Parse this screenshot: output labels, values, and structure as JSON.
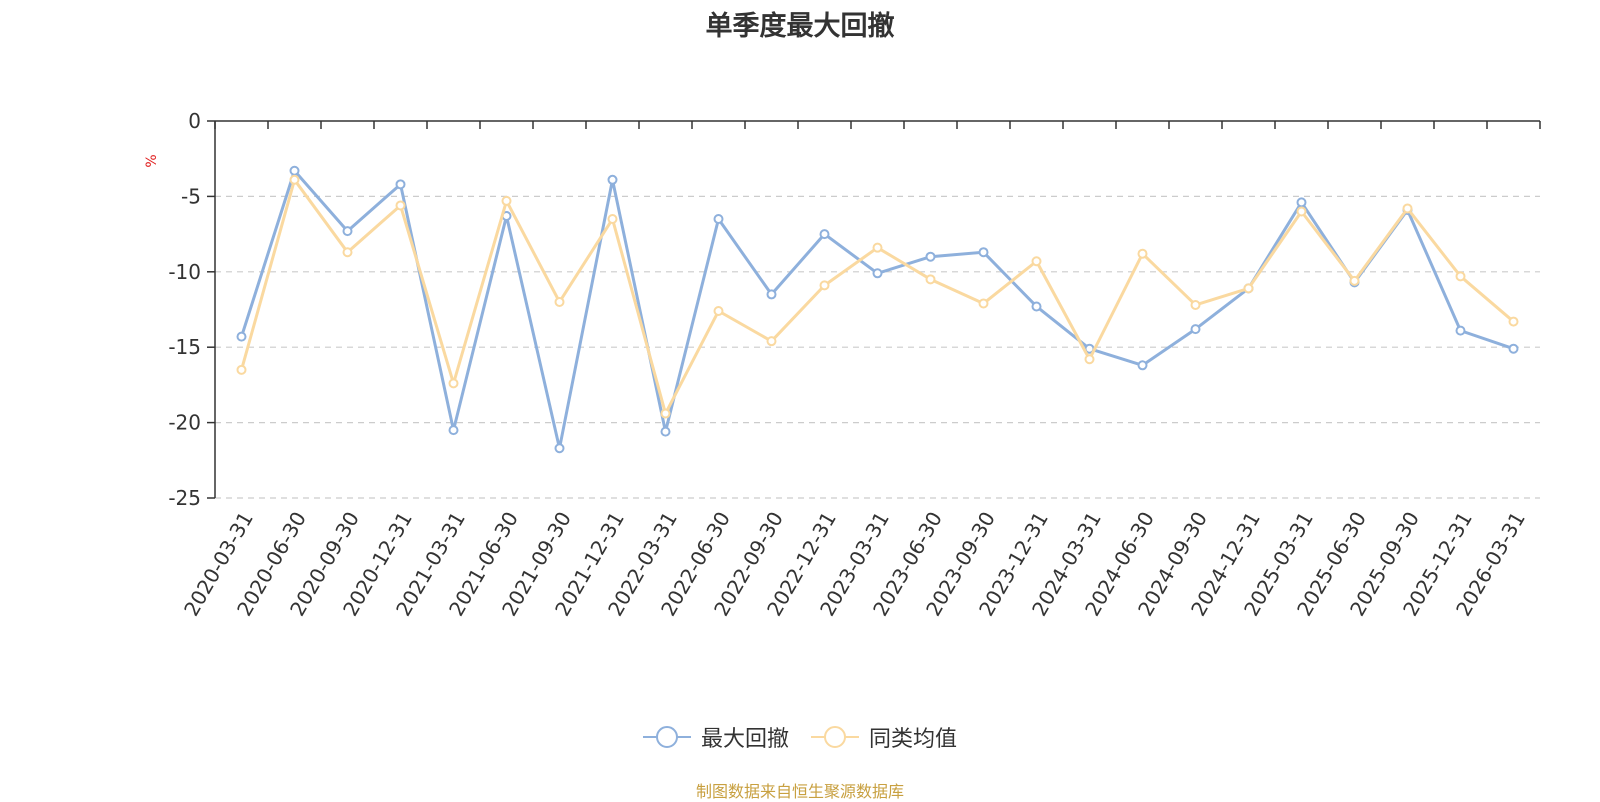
{
  "chart_data": {
    "type": "line",
    "title": "单季度最大回撤",
    "ylabel": "%",
    "ylim": [
      -25,
      0
    ],
    "yticks": [
      0,
      -5,
      -10,
      -15,
      -20,
      -25
    ],
    "grid": true,
    "legend_position": "bottom",
    "categories": [
      "2020-03-31",
      "2020-06-30",
      "2020-09-30",
      "2020-12-31",
      "2021-03-31",
      "2021-06-30",
      "2021-09-30",
      "2021-12-31",
      "2022-03-31",
      "2022-06-30",
      "2022-09-30",
      "2022-12-31",
      "2023-03-31",
      "2023-06-30",
      "2023-09-30",
      "2023-12-31",
      "2024-03-31",
      "2024-06-30",
      "2024-09-30",
      "2024-12-31",
      "2025-03-31",
      "2025-06-30",
      "2025-09-30",
      "2025-12-31",
      "2026-03-31"
    ],
    "series": [
      {
        "name": "最大回撤",
        "color": "#8eb0dc",
        "values": [
          -14.3,
          -3.3,
          -7.3,
          -4.2,
          -20.5,
          -6.3,
          -21.7,
          -3.9,
          -20.6,
          -6.5,
          -11.5,
          -7.5,
          -10.1,
          -9.0,
          -8.7,
          -12.3,
          -15.1,
          -16.2,
          -13.8,
          -11.1,
          -5.4,
          -10.7,
          -5.9,
          -13.9,
          -15.1
        ]
      },
      {
        "name": "同类均值",
        "color": "#fad9a0",
        "values": [
          -16.5,
          -3.9,
          -8.7,
          -5.6,
          -17.4,
          -5.3,
          -12.0,
          -6.5,
          -19.4,
          -12.6,
          -14.6,
          -10.9,
          -8.4,
          -10.5,
          -12.1,
          -9.3,
          -15.8,
          -8.8,
          -12.2,
          -11.1,
          -6.0,
          -10.6,
          -5.8,
          -10.3,
          -13.3
        ]
      }
    ],
    "source": "制图数据来自恒生聚源数据库"
  }
}
